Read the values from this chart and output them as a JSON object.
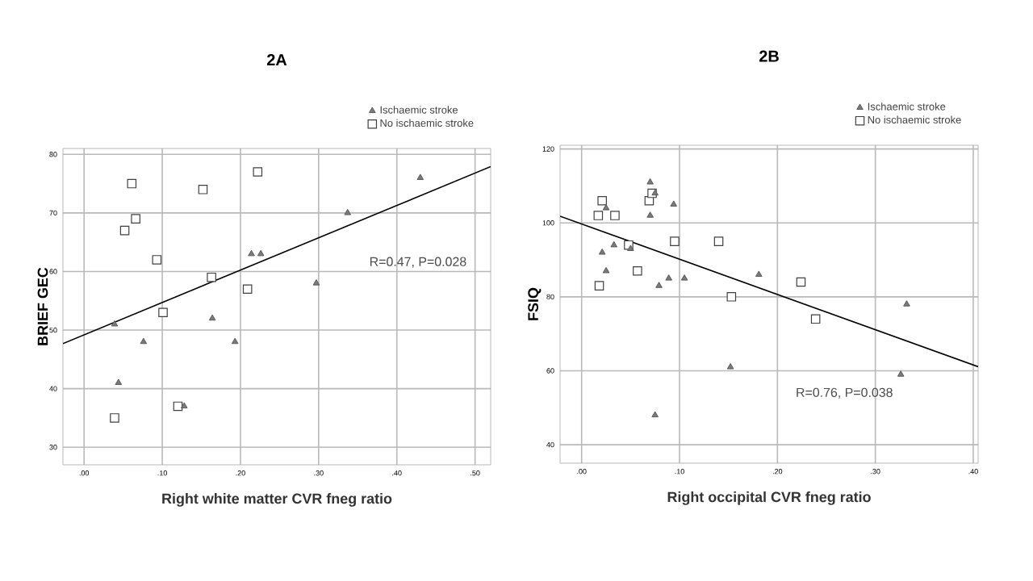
{
  "chart_data": [
    {
      "type": "scatter",
      "title": "2A",
      "xlabel": "Right white matter CVR fneg ratio",
      "ylabel": "BRIEF GEC",
      "xlim": [
        -0.027,
        0.52
      ],
      "ylim": [
        27,
        81
      ],
      "xticks": [
        {
          "value": 0,
          "label": ".00"
        },
        {
          "value": 0.1,
          "label": ".10"
        },
        {
          "value": 0.2,
          "label": ".20"
        },
        {
          "value": 0.3,
          "label": ".30"
        },
        {
          "value": 0.4,
          "label": ".40"
        },
        {
          "value": 0.5,
          "label": ".50"
        }
      ],
      "yticks": [
        30,
        40,
        50,
        60,
        70,
        80
      ],
      "grid": true,
      "legend": "top right",
      "annotations": [
        "R=0.47, P=0.028"
      ],
      "series": [
        {
          "name": "Ischaemic stroke",
          "color": "#595959",
          "marker": "triangle",
          "x": [
            0.039,
            0.044,
            0.076,
            0.128,
            0.164,
            0.193,
            0.214,
            0.226,
            0.297,
            0.337,
            0.43
          ],
          "values": [
            51,
            41,
            48,
            37,
            52,
            48,
            63,
            63,
            58,
            70,
            76
          ]
        },
        {
          "name": "No ischaemic stroke",
          "color": "#404040",
          "marker": "square",
          "x": [
            0.061,
            0.066,
            0.052,
            0.093,
            0.101,
            0.039,
            0.12,
            0.152,
            0.163,
            0.209,
            0.222
          ],
          "values": [
            75,
            69,
            67,
            62,
            53,
            35,
            37,
            74,
            59,
            57,
            77
          ]
        },
        {
          "type": "line",
          "color": "#000000",
          "x": [
            -0.027,
            0.52
          ],
          "values": [
            47.7,
            77.9
          ]
        }
      ]
    },
    {
      "type": "scatter",
      "title": "2B",
      "xlabel": "Right occipital CVR fneg ratio",
      "ylabel": "FSIQ",
      "xlim": [
        -0.022,
        0.405
      ],
      "ylim": [
        35,
        121
      ],
      "xticks": [
        {
          "value": 0,
          "label": ".00"
        },
        {
          "value": 0.1,
          "label": ".10"
        },
        {
          "value": 0.2,
          "label": ".20"
        },
        {
          "value": 0.3,
          "label": ".30"
        },
        {
          "value": 0.4,
          "label": ".40"
        }
      ],
      "yticks": [
        40,
        60,
        80,
        100,
        120
      ],
      "grid": true,
      "legend": "top right",
      "annotations": [
        "R=0.76, P=0.038"
      ],
      "series": [
        {
          "name": "Ischaemic stroke",
          "color": "#595959",
          "marker": "triangle",
          "x": [
            0.07,
            0.075,
            0.094,
            0.025,
            0.07,
            0.021,
            0.033,
            0.05,
            0.025,
            0.079,
            0.089,
            0.105,
            0.181,
            0.332,
            0.152,
            0.326,
            0.075
          ],
          "values": [
            111,
            108,
            105,
            104,
            102,
            92,
            94,
            93,
            87,
            83,
            85,
            85,
            86,
            78,
            61,
            59,
            48
          ]
        },
        {
          "name": "No ischaemic stroke",
          "color": "#404040",
          "marker": "square",
          "x": [
            0.021,
            0.017,
            0.034,
            0.069,
            0.072,
            0.048,
            0.095,
            0.14,
            0.057,
            0.018,
            0.153,
            0.224,
            0.239
          ],
          "values": [
            106,
            102,
            102,
            106,
            108,
            94,
            95,
            95,
            87,
            83,
            80,
            84,
            74
          ]
        },
        {
          "type": "line",
          "color": "#000000",
          "x": [
            -0.022,
            0.405
          ],
          "values": [
            101.8,
            61.1
          ]
        }
      ]
    }
  ]
}
